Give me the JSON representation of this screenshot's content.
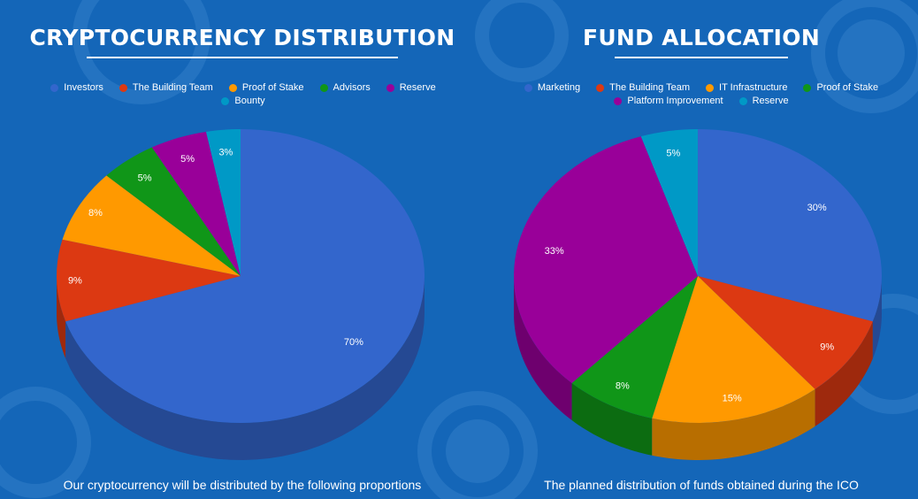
{
  "colors": {
    "background": "#1466b8",
    "text": "#ffffff"
  },
  "chart_data": [
    {
      "type": "pie",
      "title": "CRYPTOCURRENCY DISTRIBUTION",
      "caption": "Our cryptocurrency will be distributed by the following proportions",
      "categories": [
        "Investors",
        "The Building Team",
        "Proof of Stake",
        "Advisors",
        "Reserve",
        "Bounty"
      ],
      "values": [
        70,
        9,
        8,
        5,
        5,
        3
      ],
      "labels": [
        "70%",
        "9%",
        "8%",
        "5%",
        "5%",
        "3%"
      ],
      "colors": [
        "#3366cc",
        "#dc3912",
        "#ff9900",
        "#109618",
        "#990099",
        "#0099c6"
      ],
      "legend_position": "top"
    },
    {
      "type": "pie",
      "title": "FUND ALLOCATION",
      "caption": "The planned distribution of funds obtained during the ICO",
      "categories": [
        "Marketing",
        "The Building Team",
        "IT Infrastructure",
        "Proof of Stake",
        "Platform Improvement",
        "Reserve"
      ],
      "values": [
        30,
        9,
        15,
        8,
        33,
        5
      ],
      "labels": [
        "30%",
        "9%",
        "15%",
        "8%",
        "33%",
        "5%"
      ],
      "colors": [
        "#3366cc",
        "#dc3912",
        "#ff9900",
        "#109618",
        "#990099",
        "#0099c6"
      ],
      "legend_position": "top"
    }
  ]
}
